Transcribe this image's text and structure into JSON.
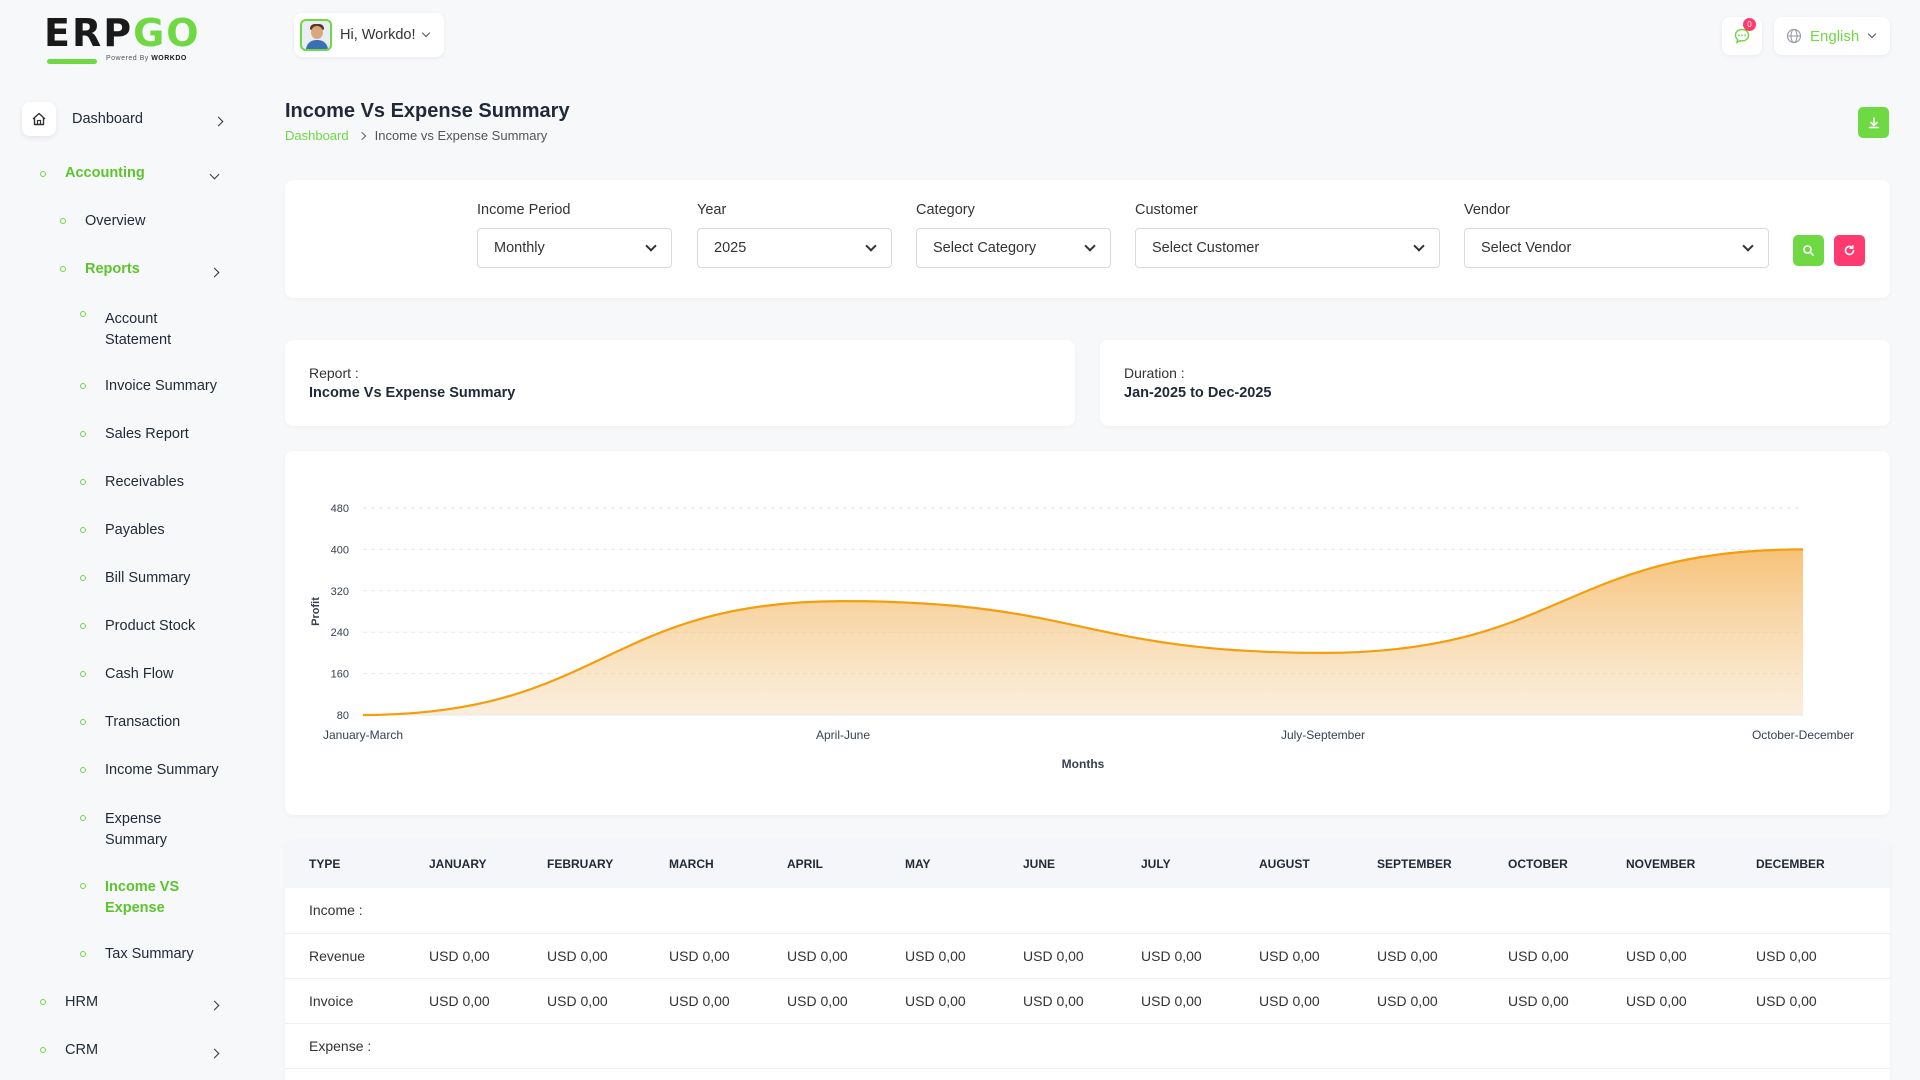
{
  "brand": {
    "logo_main": "ERP",
    "logo_accent": "GO",
    "powered_prefix": "Powered By",
    "powered_name": "WORKDO"
  },
  "sidebar": {
    "dashboard": "Dashboard",
    "accounting": "Accounting",
    "overview": "Overview",
    "reports": "Reports",
    "report_items": [
      "Account Statement",
      "Invoice Summary",
      "Sales Report",
      "Receivables",
      "Payables",
      "Bill Summary",
      "Product Stock",
      "Cash Flow",
      "Transaction",
      "Income Summary",
      "Expense Summary",
      "Income VS Expense",
      "Tax Summary"
    ],
    "hrm": "HRM",
    "crm": "CRM"
  },
  "topbar": {
    "greeting": "Hi, Workdo!",
    "notification_count": "0",
    "language": "English"
  },
  "page": {
    "title": "Income Vs Expense Summary",
    "breadcrumb_home": "Dashboard",
    "breadcrumb_current": "Income vs Expense Summary"
  },
  "filters": {
    "income_period_label": "Income Period",
    "income_period_value": "Monthly",
    "year_label": "Year",
    "year_value": "2025",
    "category_label": "Category",
    "category_value": "Select Category",
    "customer_label": "Customer",
    "customer_value": "Select Customer",
    "vendor_label": "Vendor",
    "vendor_value": "Select Vendor"
  },
  "report_info": {
    "report_label": "Report :",
    "report_value": "Income Vs Expense Summary",
    "duration_label": "Duration :",
    "duration_value": "Jan-2025 to Dec-2025"
  },
  "chart_data": {
    "type": "area",
    "x": [
      "January-March",
      "April-June",
      "July-September",
      "October-December"
    ],
    "series": [
      {
        "values": [
          80,
          300,
          200,
          400
        ]
      }
    ],
    "xlabel": "Months",
    "ylabel": "Profit",
    "yticks": [
      80,
      160,
      240,
      320,
      400,
      480
    ],
    "ylim": [
      80,
      480
    ],
    "grid": true,
    "color": "#f59e0b"
  },
  "table": {
    "headers": [
      "TYPE",
      "JANUARY",
      "FEBRUARY",
      "MARCH",
      "APRIL",
      "MAY",
      "JUNE",
      "JULY",
      "AUGUST",
      "SEPTEMBER",
      "OCTOBER",
      "NOVEMBER",
      "DECEMBER"
    ],
    "income_section": "Income :",
    "rows": [
      {
        "type": "Revenue",
        "values": [
          "USD 0,00",
          "USD 0,00",
          "USD 0,00",
          "USD 0,00",
          "USD 0,00",
          "USD 0,00",
          "USD 0,00",
          "USD 0,00",
          "USD 0,00",
          "USD 0,00",
          "USD 0,00",
          "USD 0,00"
        ]
      },
      {
        "type": "Invoice",
        "values": [
          "USD 0,00",
          "USD 0,00",
          "USD 0,00",
          "USD 0,00",
          "USD 0,00",
          "USD 0,00",
          "USD 0,00",
          "USD 0,00",
          "USD 0,00",
          "USD 0,00",
          "USD 0,00",
          "USD 0,00"
        ]
      }
    ],
    "expense_section": "Expense :"
  },
  "colors": {
    "accent": "#6fd943",
    "danger": "#ff3a6e",
    "chart_line": "#f59e0b"
  }
}
